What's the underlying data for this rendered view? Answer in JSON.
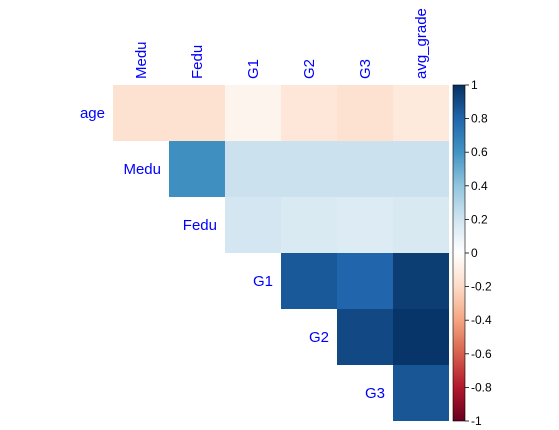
{
  "chart_data": {
    "type": "heatmap",
    "layout": "upper-triangle correlation matrix",
    "row_labels": [
      "age",
      "Medu",
      "Fedu",
      "G1",
      "G2",
      "G3"
    ],
    "col_labels": [
      "Medu",
      "Fedu",
      "G1",
      "G2",
      "G3",
      "avg_grade"
    ],
    "values": [
      [
        -0.16,
        -0.16,
        -0.06,
        -0.14,
        -0.16,
        -0.12
      ],
      [
        null,
        0.62,
        0.22,
        0.22,
        0.22,
        0.22
      ],
      [
        null,
        null,
        0.19,
        0.16,
        0.15,
        0.17
      ],
      [
        null,
        null,
        null,
        0.85,
        0.8,
        0.95
      ],
      [
        null,
        null,
        null,
        null,
        0.91,
        0.98
      ],
      [
        null,
        null,
        null,
        null,
        null,
        0.86
      ]
    ],
    "colorbar": {
      "range": [
        -1,
        1
      ],
      "ticks": [
        "1",
        "0.8",
        "0.6",
        "0.4",
        "0.2",
        "0",
        "-0.2",
        "-0.4",
        "-0.6",
        "-0.8",
        "-1"
      ]
    },
    "colors": {
      "negative_end": "#67001f",
      "mid": "#ffffff",
      "positive_end": "#053061",
      "label_color": "#0000ff"
    }
  }
}
